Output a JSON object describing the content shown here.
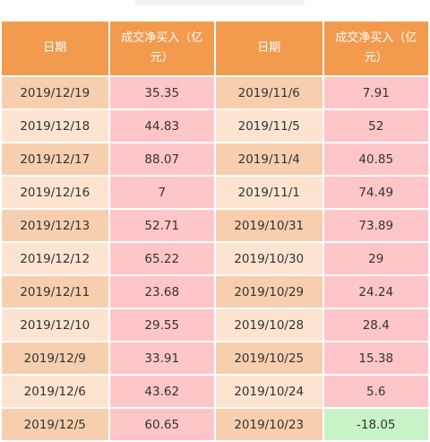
{
  "headers": [
    "日期",
    "成交净买入（亿元）",
    "日期",
    "成交净买入（亿元）"
  ],
  "rows": [
    [
      "2019/12/19",
      "35.35",
      "2019/11/6",
      "7.91"
    ],
    [
      "2019/12/18",
      "44.83",
      "2019/11/5",
      "52"
    ],
    [
      "2019/12/17",
      "88.07",
      "2019/11/4",
      "40.85"
    ],
    [
      "2019/12/16",
      "7",
      "2019/11/1",
      "74.49"
    ],
    [
      "2019/12/13",
      "52.71",
      "2019/10/31",
      "73.89"
    ],
    [
      "2019/12/12",
      "65.22",
      "2019/10/30",
      "29"
    ],
    [
      "2019/12/11",
      "23.68",
      "2019/10/29",
      "24.24"
    ],
    [
      "2019/12/10",
      "29.55",
      "2019/10/28",
      "28.4"
    ],
    [
      "2019/12/9",
      "33.91",
      "2019/10/25",
      "15.38"
    ],
    [
      "2019/12/6",
      "43.62",
      "2019/10/24",
      "5.6"
    ],
    [
      "2019/12/5",
      "60.65",
      "2019/10/23",
      "-18.05"
    ]
  ],
  "colors": {
    "header_bg": "#f29b4e",
    "date_cell_dark": "#f8cfae",
    "date_cell_light": "#fde4d0",
    "positive_value_bg": "#ffc6c9",
    "negative_value_bg": "#c8f3c7"
  }
}
